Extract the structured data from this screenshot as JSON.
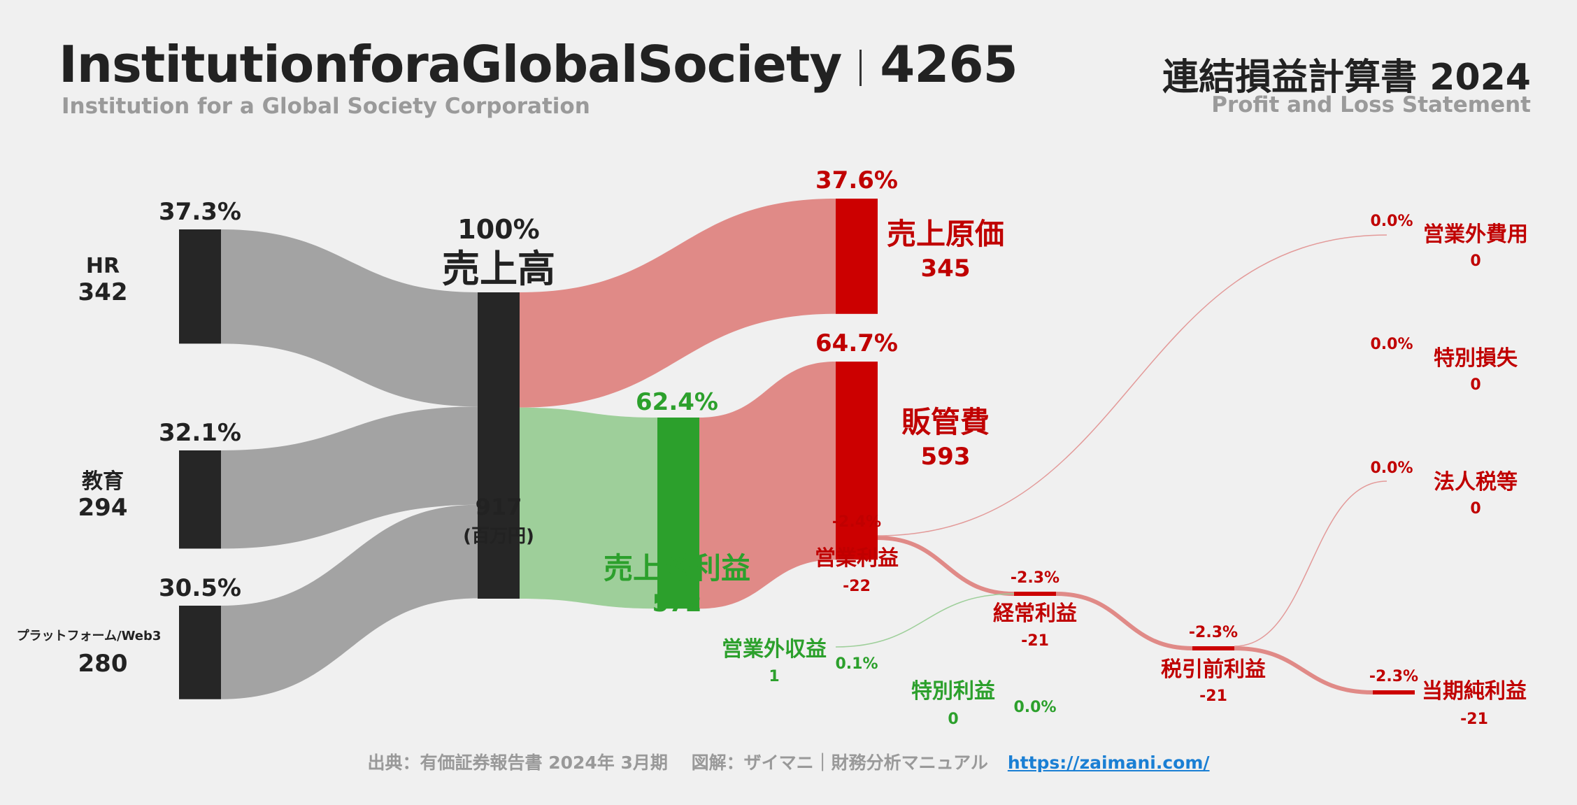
{
  "header": {
    "company_name": "InstitutionforaGlobalSociety",
    "ticker": "4265",
    "company_full": "Institution for a Global Society Corporation",
    "statement_title": "連結損益計算書 2024",
    "statement_subtitle": "Profit and Loss Statement"
  },
  "footer": {
    "source": "出典：有価証券報告書 2024年 3月期　 図解：ザイマニ｜財務分析マニュアル",
    "url": "https://zaimani.com/"
  },
  "colors": {
    "dark": "#262626",
    "gray_flow": "#a3a3a3",
    "green": "#2ca02c",
    "green_flow": "#9ecf9a",
    "red": "#cc0000",
    "red_flow": "#e08a87",
    "red_text": "#c00000"
  },
  "chart_data": {
    "type": "sankey",
    "unit": "(百万円)",
    "nodes": [
      {
        "id": "hr",
        "label": "HR",
        "value": 342,
        "percent": "37.3%"
      },
      {
        "id": "edu",
        "label": "教育",
        "value": 294,
        "percent": "32.1%"
      },
      {
        "id": "platform",
        "label": "プラットフォーム/Web3",
        "value": 280,
        "percent": "30.5%"
      },
      {
        "id": "revenue",
        "label": "売上高",
        "value": 917,
        "percent": "100%"
      },
      {
        "id": "cogs",
        "label": "売上原価",
        "value": 345,
        "percent": "37.6%"
      },
      {
        "id": "gross",
        "label": "売上総利益",
        "value": 572,
        "percent": "62.4%"
      },
      {
        "id": "sga",
        "label": "販管費",
        "value": 593,
        "percent": "64.7%"
      },
      {
        "id": "op",
        "label": "営業利益",
        "value": -22,
        "percent": "-2.4%"
      },
      {
        "id": "nonop_inc",
        "label": "営業外収益",
        "value": 1,
        "percent": "0.1%"
      },
      {
        "id": "nonop_exp",
        "label": "営業外費用",
        "value": 0,
        "percent": "0.0%"
      },
      {
        "id": "ordinary",
        "label": "経常利益",
        "value": -21,
        "percent": "-2.3%"
      },
      {
        "id": "extra_inc",
        "label": "特別利益",
        "value": 0,
        "percent": "0.0%"
      },
      {
        "id": "extra_loss",
        "label": "特別損失",
        "value": 0,
        "percent": "0.0%"
      },
      {
        "id": "pretax",
        "label": "税引前利益",
        "value": -21,
        "percent": "-2.3%"
      },
      {
        "id": "tax",
        "label": "法人税等",
        "value": 0,
        "percent": "0.0%"
      },
      {
        "id": "net",
        "label": "当期純利益",
        "value": -21,
        "percent": "-2.3%"
      }
    ],
    "links": [
      {
        "source": "hr",
        "target": "revenue",
        "value": 342
      },
      {
        "source": "edu",
        "target": "revenue",
        "value": 294
      },
      {
        "source": "platform",
        "target": "revenue",
        "value": 280
      },
      {
        "source": "revenue",
        "target": "cogs",
        "value": 345
      },
      {
        "source": "revenue",
        "target": "gross",
        "value": 572
      },
      {
        "source": "gross",
        "target": "sga",
        "value": 593
      },
      {
        "source": "gross",
        "target": "op",
        "value": -22
      },
      {
        "source": "op",
        "target": "nonop_exp",
        "value": 0
      },
      {
        "source": "op",
        "target": "ordinary",
        "value": -22
      },
      {
        "source": "nonop_inc",
        "target": "ordinary",
        "value": 1
      },
      {
        "source": "ordinary",
        "target": "pretax",
        "value": -21
      },
      {
        "source": "pretax",
        "target": "tax",
        "value": 0
      },
      {
        "source": "pretax",
        "target": "net",
        "value": -21
      }
    ]
  }
}
